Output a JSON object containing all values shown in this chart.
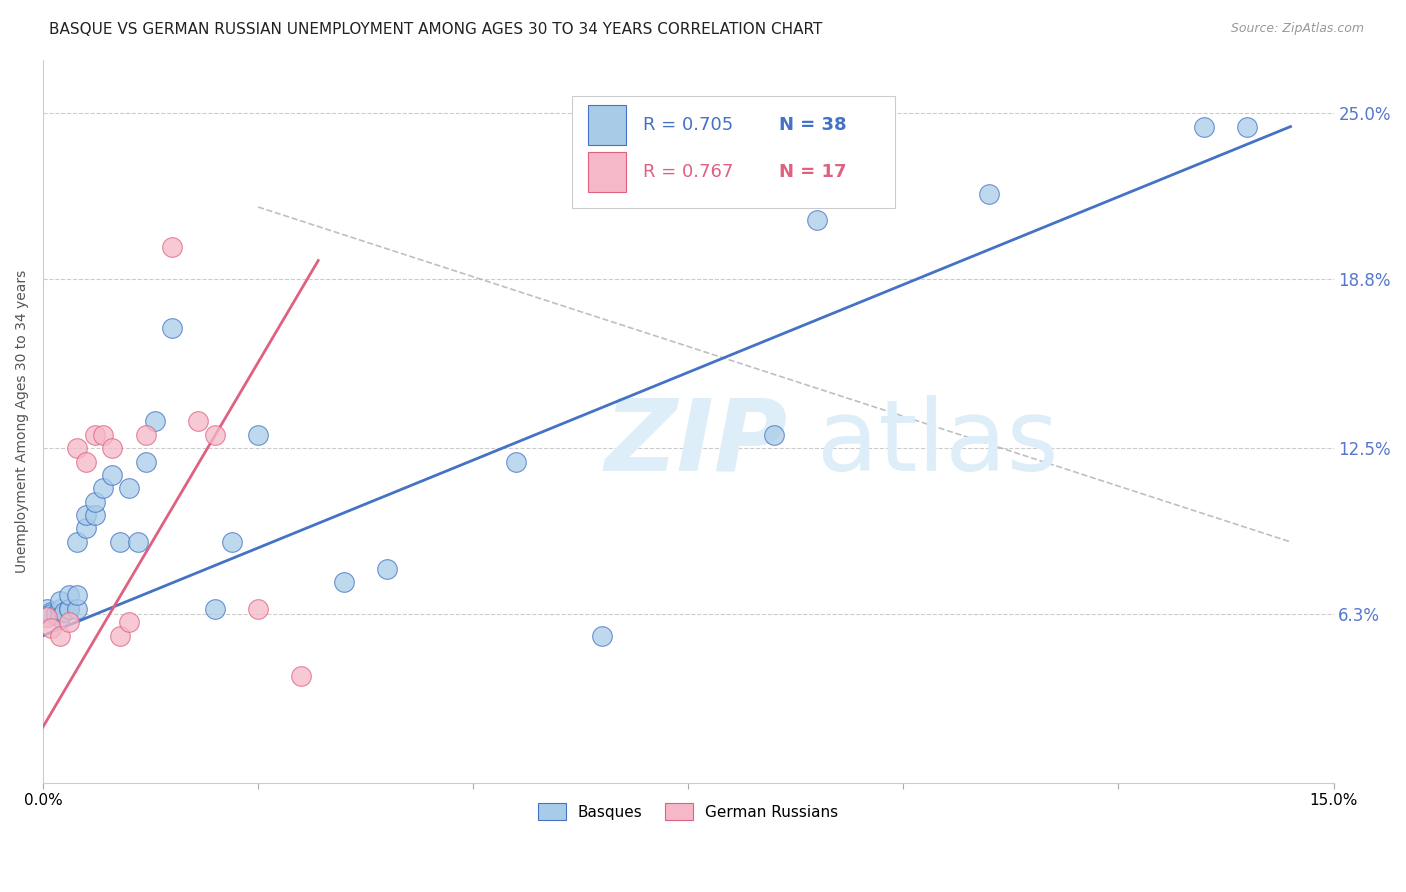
{
  "title": "BASQUE VS GERMAN RUSSIAN UNEMPLOYMENT AMONG AGES 30 TO 34 YEARS CORRELATION CHART",
  "source": "Source: ZipAtlas.com",
  "ylabel": "Unemployment Among Ages 30 to 34 years",
  "xlim": [
    0.0,
    0.15
  ],
  "ylim": [
    0.0,
    0.27
  ],
  "xticks": [
    0.0,
    0.025,
    0.05,
    0.075,
    0.1,
    0.125,
    0.15
  ],
  "xticklabels": [
    "0.0%",
    "",
    "",
    "",
    "",
    "",
    "15.0%"
  ],
  "yticks_right": [
    0.063,
    0.125,
    0.188,
    0.25
  ],
  "yticklabels_right": [
    "6.3%",
    "12.5%",
    "18.8%",
    "25.0%"
  ],
  "basques_x": [
    0.0005,
    0.001,
    0.001,
    0.0015,
    0.002,
    0.002,
    0.002,
    0.0025,
    0.003,
    0.003,
    0.003,
    0.004,
    0.004,
    0.004,
    0.005,
    0.005,
    0.006,
    0.006,
    0.007,
    0.008,
    0.009,
    0.01,
    0.011,
    0.012,
    0.013,
    0.015,
    0.02,
    0.022,
    0.025,
    0.035,
    0.04,
    0.055,
    0.065,
    0.085,
    0.09,
    0.11,
    0.135,
    0.14
  ],
  "basques_y": [
    0.065,
    0.064,
    0.063,
    0.063,
    0.065,
    0.068,
    0.062,
    0.064,
    0.065,
    0.065,
    0.07,
    0.065,
    0.07,
    0.09,
    0.095,
    0.1,
    0.1,
    0.105,
    0.11,
    0.115,
    0.09,
    0.11,
    0.09,
    0.12,
    0.135,
    0.17,
    0.065,
    0.09,
    0.13,
    0.075,
    0.08,
    0.12,
    0.055,
    0.13,
    0.21,
    0.22,
    0.245,
    0.245
  ],
  "german_russians_x": [
    0.0005,
    0.001,
    0.002,
    0.003,
    0.004,
    0.005,
    0.006,
    0.007,
    0.008,
    0.009,
    0.01,
    0.012,
    0.015,
    0.018,
    0.02,
    0.025,
    0.03
  ],
  "german_russians_y": [
    0.062,
    0.058,
    0.055,
    0.06,
    0.125,
    0.12,
    0.13,
    0.13,
    0.125,
    0.055,
    0.06,
    0.13,
    0.2,
    0.135,
    0.13,
    0.065,
    0.04
  ],
  "blue_line_x": [
    0.0,
    0.145
  ],
  "blue_line_y": [
    0.055,
    0.245
  ],
  "pink_line_x": [
    -0.002,
    0.032
  ],
  "pink_line_y": [
    0.01,
    0.195
  ],
  "diag_line_x": [
    0.025,
    0.145
  ],
  "diag_line_y": [
    0.215,
    0.09
  ],
  "blue_color": "#a8cce8",
  "pink_color": "#f5b8c8",
  "blue_line_color": "#4472c4",
  "pink_line_color": "#e06080",
  "diag_line_color": "#b0b0b0",
  "legend_r_blue": "R = 0.705",
  "legend_n_blue": "N = 38",
  "legend_r_pink": "R = 0.767",
  "legend_n_pink": "N = 17",
  "watermark_zip": "ZIP",
  "watermark_atlas": "atlas",
  "watermark_color": "#ddeef8",
  "background_color": "#ffffff",
  "grid_color": "#cccccc",
  "title_fontsize": 11,
  "axis_label_fontsize": 10,
  "tick_fontsize": 11,
  "right_tick_color": "#5577cc"
}
